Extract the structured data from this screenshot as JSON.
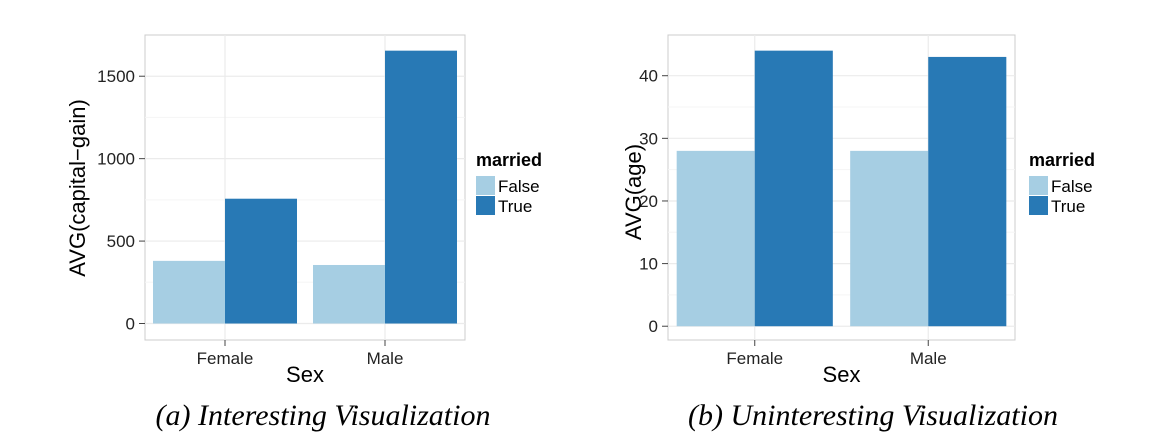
{
  "chart_data": [
    {
      "type": "bar",
      "categories": [
        "Female",
        "Male"
      ],
      "series": [
        {
          "name": "False",
          "values": [
            380,
            355
          ]
        },
        {
          "name": "True",
          "values": [
            757,
            1655
          ]
        }
      ],
      "xlabel": "Sex",
      "ylabel": "AVG(capital−gain)",
      "ylim": [
        -100,
        1750
      ],
      "yticks": [
        0,
        500,
        1000,
        1500
      ],
      "legend_title": "married",
      "legend_position": "right",
      "grid": true,
      "caption": "(a) Interesting Visualization"
    },
    {
      "type": "bar",
      "categories": [
        "Female",
        "Male"
      ],
      "series": [
        {
          "name": "False",
          "values": [
            28,
            28
          ]
        },
        {
          "name": "True",
          "values": [
            44,
            43
          ]
        }
      ],
      "xlabel": "Sex",
      "ylabel": "AVG(age)",
      "ylim": [
        -2.2,
        46.5
      ],
      "yticks": [
        0,
        10,
        20,
        30,
        40
      ],
      "legend_title": "married",
      "legend_position": "right",
      "grid": true,
      "caption": "(b) Uninteresting Visualization"
    }
  ],
  "colors": {
    "false": "#a6cee3",
    "true": "#2879b5",
    "grid_major": "#ebebeb",
    "grid_minor": "#f5f5f5",
    "panel_border": "#cccccc"
  }
}
